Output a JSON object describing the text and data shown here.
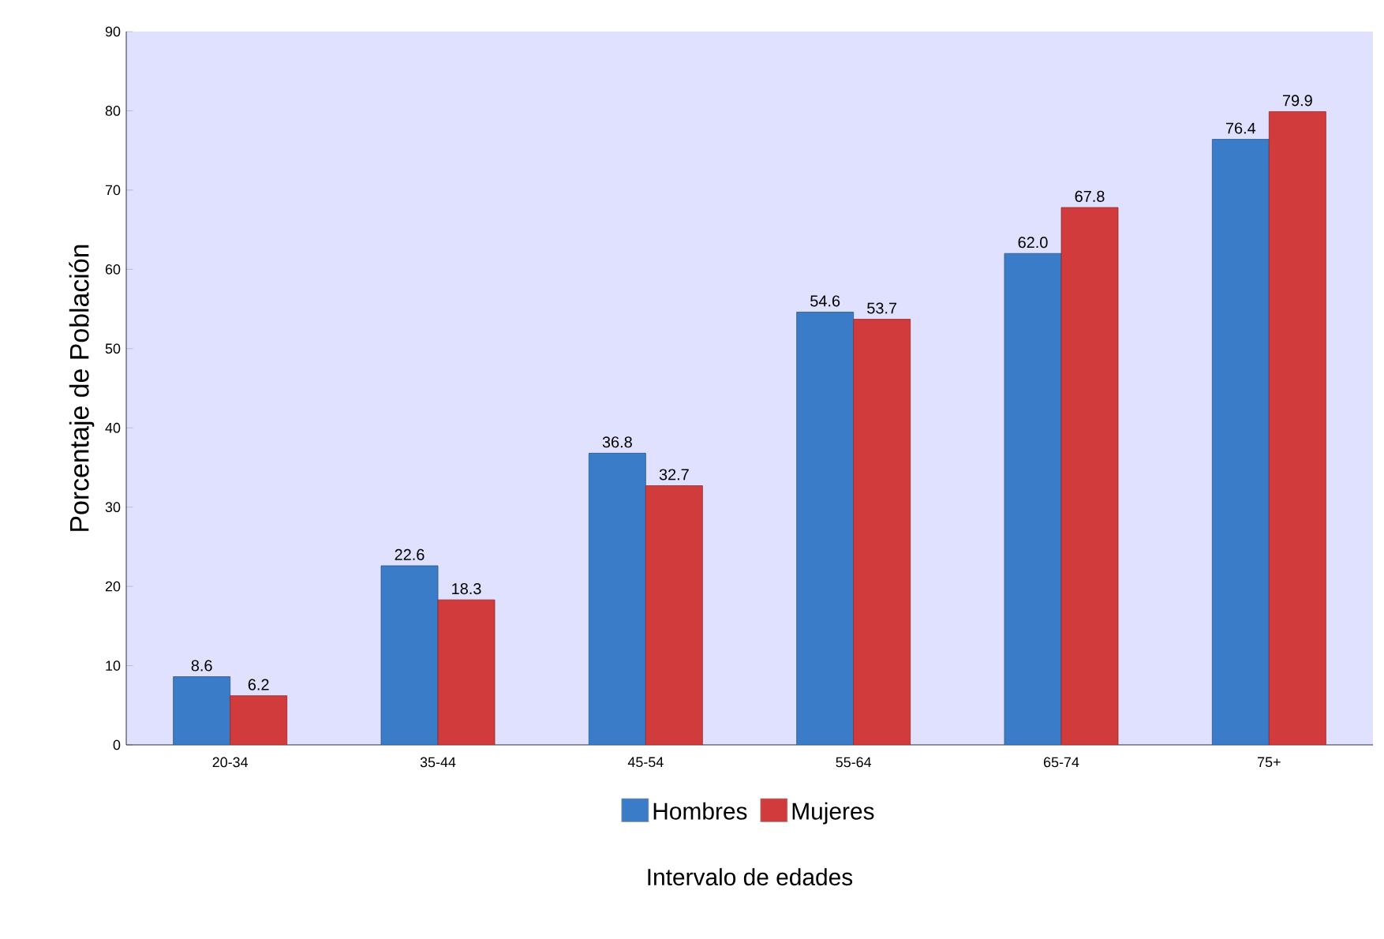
{
  "chart_data": {
    "type": "bar",
    "xlabel": "Intervalo de edades",
    "ylabel": "Porcentaje de Población",
    "categories": [
      "20-34",
      "35-44",
      "45-54",
      "55-64",
      "65-74",
      "75+"
    ],
    "series": [
      {
        "name": "Hombres",
        "color": "#3a7cc8",
        "values": [
          8.6,
          22.6,
          36.8,
          54.6,
          62.0,
          76.4
        ],
        "value_labels": [
          "8.6",
          "22.6",
          "36.8",
          "54.6",
          "62.0",
          "76.4"
        ]
      },
      {
        "name": "Mujeres",
        "color": "#d23b3b",
        "values": [
          6.2,
          18.3,
          32.7,
          53.7,
          67.8,
          79.9
        ],
        "value_labels": [
          "6.2",
          "18.3",
          "32.7",
          "53.7",
          "67.8",
          "79.9"
        ]
      }
    ],
    "ylim": [
      0,
      90
    ],
    "yticks": [
      0,
      10,
      20,
      30,
      40,
      50,
      60,
      70,
      80,
      90
    ],
    "legend": "bottom",
    "grid": false
  }
}
